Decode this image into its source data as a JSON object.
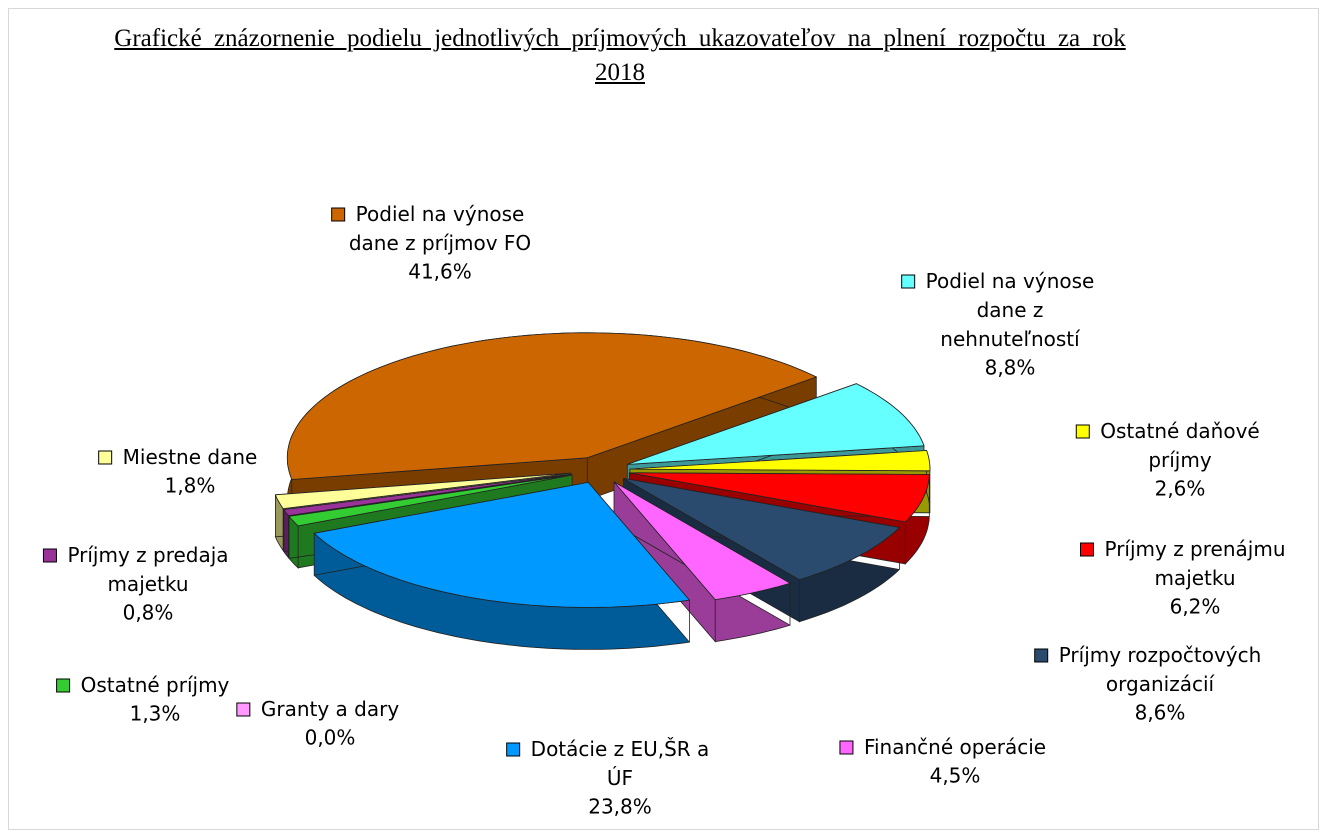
{
  "chart_data": {
    "type": "pie3d",
    "title": "Grafické znázornenie podielu jednotlivých príjmových ukazovateľov na plnení rozpočtu za rok 2018",
    "categories": [
      "Podiel na výnose dane z príjmov FO",
      "Podiel na výnose dane z nehnuteľností",
      "Ostatné daňové príjmy",
      "Príjmy z prenájmu majetku",
      "Príjmy rozpočtových organizácií",
      "Finančné operácie",
      "Dotácie z EU,ŠR a ÚF",
      "Granty a dary",
      "Ostatné príjmy",
      "Príjmy z predaja majetku",
      "Miestne dane"
    ],
    "values": [
      41.6,
      8.8,
      2.6,
      6.2,
      8.6,
      4.5,
      23.8,
      0.0,
      1.3,
      0.8,
      1.8
    ],
    "value_labels": [
      "41,6%",
      "8,8%",
      "2,6%",
      "6,2%",
      "8,6%",
      "4,5%",
      "23,8%",
      "0,0%",
      "1,3%",
      "0,8%",
      "1,8%"
    ],
    "colors": [
      "#cc6600",
      "#66ffff",
      "#ffff00",
      "#ff0000",
      "#2a4a6e",
      "#ff66ff",
      "#0099ff",
      "#ff99ff",
      "#33cc33",
      "#993399",
      "#ffff99"
    ]
  }
}
